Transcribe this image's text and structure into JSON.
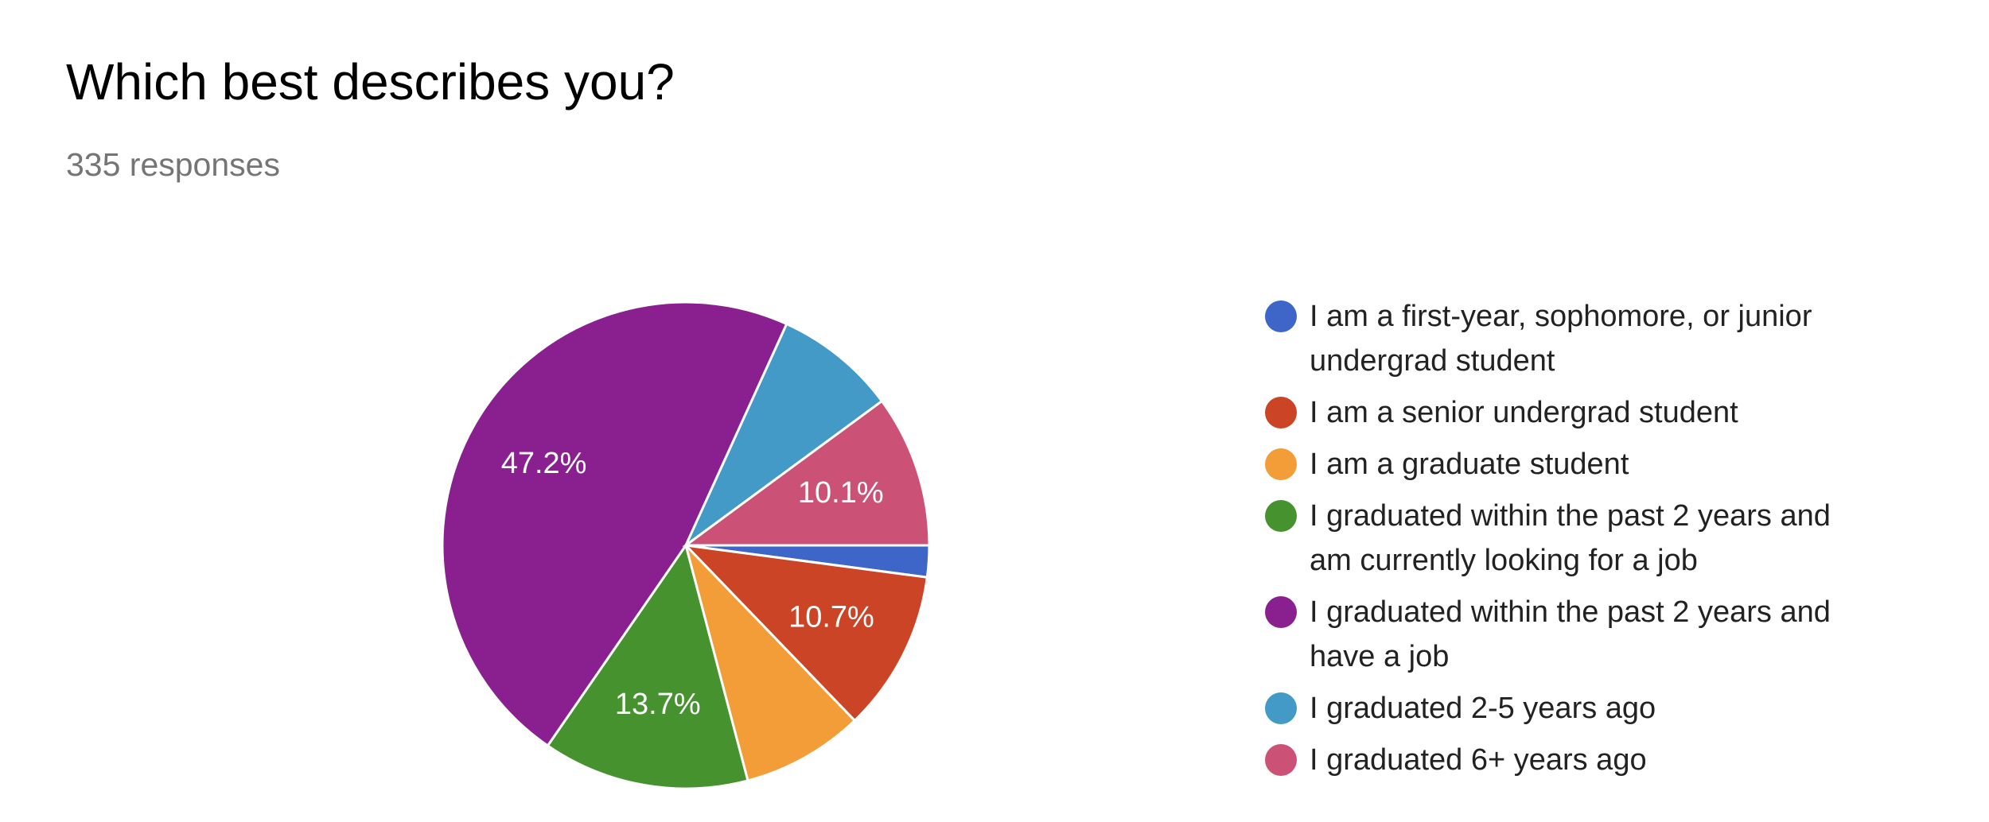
{
  "chart_data": {
    "type": "pie",
    "title": "Which best describes you?",
    "subtitle": "335 responses",
    "categories": [
      "I am a first-year, sophomore, or junior undergrad student",
      "I am a senior undergrad student",
      "I am a graduate student",
      "I graduated within the past 2 years and am currently looking for a job",
      "I graduated within the past 2 years and have a job",
      "I graduated 2-5 years ago",
      "I graduated 6+ years ago"
    ],
    "values": [
      2.1,
      10.7,
      8.1,
      13.7,
      47.2,
      8.1,
      10.1
    ],
    "value_labels": [
      null,
      "10.7%",
      null,
      "13.7%",
      "47.2%",
      null,
      "10.1%"
    ],
    "colors": [
      "#3e66c8",
      "#cb4426",
      "#f29d37",
      "#45922f",
      "#8a208f",
      "#439ac6",
      "#cc5176"
    ],
    "legend": "right"
  }
}
